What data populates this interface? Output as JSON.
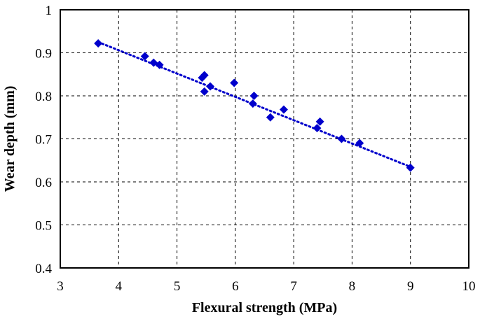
{
  "chart_data": {
    "type": "scatter",
    "title": "",
    "xlabel": "Flexural strength (MPa)",
    "ylabel": "Wear depth (mm)",
    "xlim": [
      3,
      10
    ],
    "ylim": [
      0.4,
      1.0
    ],
    "xticks": [
      "3",
      "4",
      "5",
      "6",
      "7",
      "8",
      "9",
      "10"
    ],
    "yticks": [
      "0.4",
      "0.5",
      "0.6",
      "0.7",
      "0.8",
      "0.9",
      "1"
    ],
    "grid": true,
    "marker": "diamond",
    "marker_color": "#0000CC",
    "trendline": {
      "style": "dotted",
      "color": "#0000CC",
      "x": [
        3.65,
        9.0
      ],
      "y": [
        0.925,
        0.635
      ]
    },
    "points": [
      {
        "x": 3.65,
        "y": 0.922
      },
      {
        "x": 4.45,
        "y": 0.892
      },
      {
        "x": 4.6,
        "y": 0.877
      },
      {
        "x": 4.7,
        "y": 0.872
      },
      {
        "x": 5.43,
        "y": 0.842
      },
      {
        "x": 5.47,
        "y": 0.848
      },
      {
        "x": 5.47,
        "y": 0.81
      },
      {
        "x": 5.57,
        "y": 0.822
      },
      {
        "x": 5.98,
        "y": 0.83
      },
      {
        "x": 6.32,
        "y": 0.8
      },
      {
        "x": 6.3,
        "y": 0.782
      },
      {
        "x": 6.6,
        "y": 0.75
      },
      {
        "x": 6.83,
        "y": 0.768
      },
      {
        "x": 7.4,
        "y": 0.725
      },
      {
        "x": 7.45,
        "y": 0.74
      },
      {
        "x": 7.82,
        "y": 0.7
      },
      {
        "x": 8.13,
        "y": 0.69
      },
      {
        "x": 9.0,
        "y": 0.633
      }
    ]
  }
}
